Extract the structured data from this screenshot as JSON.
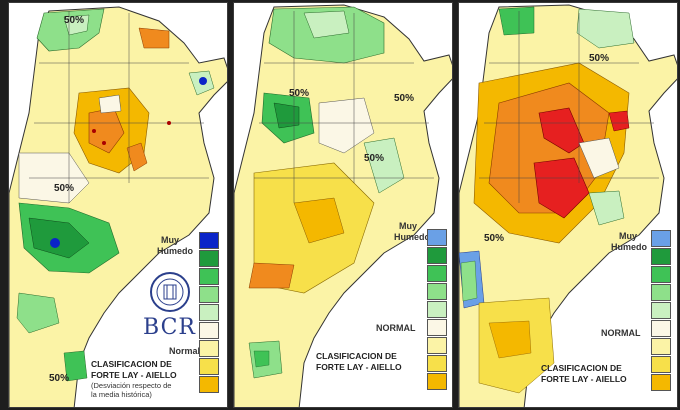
{
  "colors": {
    "muy_humedo": "#0a24c8",
    "humedo_fuerte": "#1f9a3c",
    "humedo_medio": "#3fc256",
    "humedo_leve": "#8ee08a",
    "humedo_muy_leve": "#c9f0c0",
    "normal": "#fbf7e6",
    "seco_leve": "#fbf3a6",
    "seco_medio": "#f7e04a",
    "seco_fuerte": "#f4b800",
    "muy_seco_naranja": "#f08a1e",
    "extremo": "#e62020",
    "azul_claro": "#6aa0e6"
  },
  "panels": [
    {
      "legend_top": "Muy",
      "legend_top2": "Humedo",
      "legend_normal": "Normal",
      "pct_labels": [
        "50%",
        "50%",
        "50%"
      ],
      "logo_text": "BCR",
      "title_line1": "CLASIFICACION DE",
      "title_line2": "FORTE LAY - AIELLO",
      "subtitle_line1": "(Desviación respecto de",
      "subtitle_line2": "la media histórica)"
    },
    {
      "legend_top": "Muy",
      "legend_top2": "Humedo",
      "legend_normal": "NORMAL",
      "pct_labels": [
        "50%",
        "50%",
        "50%"
      ],
      "title_line1": "CLASIFICACION DE",
      "title_line2": "FORTE LAY - AIELLO"
    },
    {
      "legend_top": "Muy",
      "legend_top2": "Humedo",
      "legend_normal": "NORMAL",
      "pct_labels": [
        "50%",
        "50%"
      ],
      "title_line1": "CLASIFICACION DE",
      "title_line2": "FORTE LAY - AIELLO"
    }
  ]
}
